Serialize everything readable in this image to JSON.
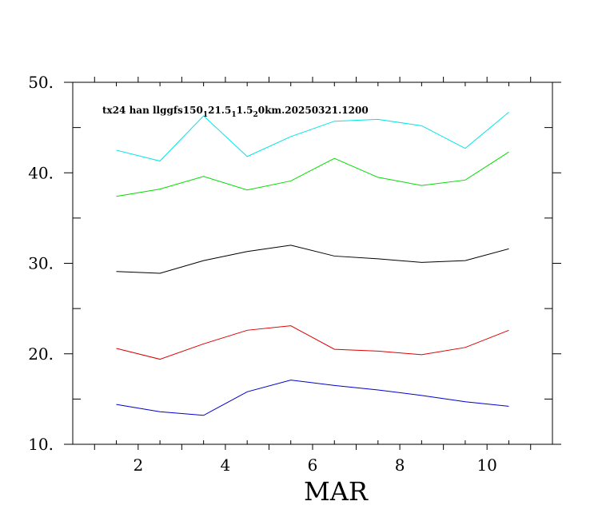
{
  "chart_data": {
    "type": "line",
    "title_parts": {
      "pre": "tx24 han llggfs150",
      "sub1": "1",
      "mid1": "21.5",
      "sub2": "1",
      "mid2": "1.5",
      "sub3": "2",
      "post": "0km.20250321.1200"
    },
    "xlabel": "MAR",
    "ylabel": "",
    "xlim": [
      0.5,
      11.5
    ],
    "ylim": [
      10,
      50
    ],
    "x": [
      1.5,
      2.5,
      3.5,
      4.5,
      5.5,
      6.5,
      7.5,
      8.5,
      9.5,
      10.5
    ],
    "xticks_major": [
      1,
      2,
      3,
      4,
      5,
      6,
      7,
      8,
      9,
      10,
      11
    ],
    "xtick_labels": [
      {
        "x": 2,
        "label": "2"
      },
      {
        "x": 4,
        "label": "4"
      },
      {
        "x": 6,
        "label": "6"
      },
      {
        "x": 8,
        "label": "8"
      },
      {
        "x": 10,
        "label": "10"
      }
    ],
    "xticks_minor": [
      1.5,
      2.5,
      3.5,
      4.5,
      5.5,
      6.5,
      7.5,
      8.5,
      9.5,
      10.5
    ],
    "yticks_major": [
      10,
      20,
      30,
      40,
      50
    ],
    "ytick_labels": [
      "10.",
      "20.",
      "30.",
      "40.",
      "50."
    ],
    "yticks_minor": [
      15,
      25,
      35,
      45
    ],
    "series": [
      {
        "name": "cyan",
        "color": "#00e5e5",
        "values": [
          42.5,
          41.3,
          46.3,
          41.8,
          44.0,
          45.7,
          45.9,
          45.2,
          42.7,
          46.7
        ]
      },
      {
        "name": "green",
        "color": "#00dd00",
        "values": [
          37.4,
          38.2,
          39.6,
          38.1,
          39.1,
          41.6,
          39.5,
          38.6,
          39.2,
          42.3
        ]
      },
      {
        "name": "black",
        "color": "#000000",
        "values": [
          29.1,
          28.9,
          30.3,
          31.3,
          32.0,
          30.8,
          30.5,
          30.1,
          30.3,
          31.6
        ]
      },
      {
        "name": "red",
        "color": "#dd0000",
        "values": [
          20.6,
          19.4,
          21.1,
          22.6,
          23.1,
          20.5,
          20.3,
          19.9,
          20.7,
          22.6
        ]
      },
      {
        "name": "blue",
        "color": "#0000cc",
        "values": [
          14.4,
          13.6,
          13.2,
          15.8,
          17.1,
          16.5,
          16.0,
          15.4,
          14.7,
          14.2
        ]
      }
    ]
  }
}
